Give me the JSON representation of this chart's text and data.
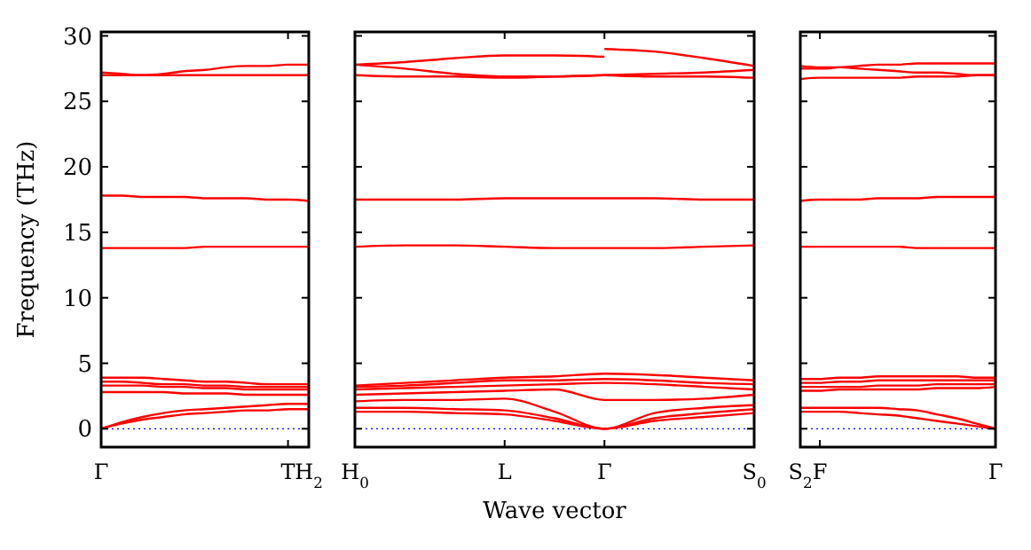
{
  "chart_data": [
    {
      "type": "line",
      "ylabel": "Frequency (THz)",
      "categories": [
        "Γ",
        null,
        null,
        null,
        null,
        null,
        null,
        null,
        null,
        "T",
        "H$_{2}$"
      ],
      "ylim": [
        -1.4,
        30.3
      ],
      "yticks": [
        0,
        5,
        10,
        15,
        20,
        25,
        30
      ],
      "ref_lines": [
        {
          "axis": "y",
          "value": 0,
          "color": "#0000ff",
          "line_style": "dotted"
        }
      ],
      "series": [
        {
          "color": "#ff0000",
          "values": [
            0,
            0.4,
            0.7,
            0.9,
            1.1,
            1.2,
            1.3,
            1.4,
            1.4,
            1.5,
            1.5
          ]
        },
        {
          "color": "#ff0000",
          "values": [
            0,
            0.5,
            0.9,
            1.2,
            1.4,
            1.5,
            1.6,
            1.7,
            1.8,
            1.9,
            1.9
          ]
        },
        {
          "color": "#ff0000",
          "values": [
            2.8,
            2.8,
            2.8,
            2.8,
            2.7,
            2.7,
            2.7,
            2.6,
            2.6,
            2.6,
            2.6
          ]
        },
        {
          "color": "#ff0000",
          "values": [
            3.3,
            3.3,
            3.3,
            3.2,
            3.2,
            3.1,
            3.1,
            3.0,
            3.0,
            3.0,
            3.0
          ]
        },
        {
          "color": "#ff0000",
          "values": [
            3.6,
            3.6,
            3.5,
            3.4,
            3.4,
            3.3,
            3.3,
            3.2,
            3.2,
            3.2,
            3.2
          ]
        },
        {
          "color": "#ff0000",
          "values": [
            3.9,
            3.9,
            3.9,
            3.8,
            3.7,
            3.6,
            3.6,
            3.5,
            3.4,
            3.4,
            3.4
          ]
        },
        {
          "color": "#ff0000",
          "values": [
            13.8,
            13.8,
            13.8,
            13.8,
            13.8,
            13.9,
            13.9,
            13.9,
            13.9,
            13.9,
            13.9
          ]
        },
        {
          "color": "#ff0000",
          "values": [
            17.8,
            17.8,
            17.7,
            17.7,
            17.7,
            17.6,
            17.6,
            17.6,
            17.5,
            17.5,
            17.4
          ]
        },
        {
          "color": "#ff0000",
          "values": [
            27.0,
            27.0,
            27.0,
            27.0,
            27.0,
            27.0,
            27.0,
            27.0,
            27.0,
            27.0,
            27.0
          ]
        },
        {
          "color": "#ff0000",
          "values": [
            27.2,
            27.1,
            27.0,
            27.1,
            27.3,
            27.4,
            27.6,
            27.7,
            27.7,
            27.8,
            27.8
          ]
        }
      ]
    },
    {
      "type": "line",
      "xlabel": "Wave vector",
      "categories": [
        "H$_{0}$",
        null,
        null,
        "L",
        null,
        "Γ",
        null,
        null,
        "S$_{0}$"
      ],
      "ylim": [
        -1.4,
        30.3
      ],
      "yticks": [
        0,
        5,
        10,
        15,
        20,
        25,
        30
      ],
      "tick_labels": "x",
      "ref_lines": [
        {
          "axis": "y",
          "value": 0,
          "color": "#0000ff",
          "line_style": "dotted"
        }
      ],
      "series": [
        {
          "color": "#ff0000",
          "values": [
            1.3,
            1.3,
            1.2,
            1.1,
            0.6,
            0,
            0.6,
            0.9,
            1.2
          ]
        },
        {
          "color": "#ff0000",
          "values": [
            1.6,
            1.6,
            1.5,
            1.4,
            0.8,
            0,
            0.8,
            1.2,
            1.5
          ]
        },
        {
          "color": "#ff0000",
          "values": [
            2.1,
            2.2,
            2.2,
            2.3,
            1.3,
            0,
            1.2,
            1.6,
            1.8
          ]
        },
        {
          "color": "#ff0000",
          "values": [
            2.6,
            2.7,
            2.8,
            2.9,
            3.0,
            2.2,
            2.2,
            2.3,
            2.6
          ]
        },
        {
          "color": "#ff0000",
          "values": [
            3.0,
            3.1,
            3.2,
            3.3,
            3.4,
            3.5,
            3.4,
            3.2,
            3.0
          ]
        },
        {
          "color": "#ff0000",
          "values": [
            3.2,
            3.3,
            3.5,
            3.7,
            3.7,
            3.8,
            3.7,
            3.5,
            3.4
          ]
        },
        {
          "color": "#ff0000",
          "values": [
            3.3,
            3.5,
            3.7,
            3.9,
            4.0,
            4.2,
            4.1,
            3.9,
            3.7
          ]
        },
        {
          "color": "#ff0000",
          "values": [
            13.9,
            14.0,
            14.0,
            13.9,
            13.8,
            13.8,
            13.8,
            13.9,
            14.0
          ]
        },
        {
          "color": "#ff0000",
          "values": [
            17.5,
            17.5,
            17.5,
            17.6,
            17.6,
            17.6,
            17.6,
            17.5,
            17.5
          ]
        },
        {
          "color": "#ff0000",
          "values": [
            27.8,
            28.0,
            28.3,
            28.5,
            28.5,
            28.4,
            null,
            null,
            null
          ]
        },
        {
          "color": "#ff0000",
          "values": [
            27.8,
            27.5,
            27.1,
            26.9,
            26.9,
            27.0,
            null,
            null,
            null
          ]
        },
        {
          "color": "#ff0000",
          "values": [
            27.0,
            26.9,
            26.9,
            26.8,
            26.9,
            27.0,
            null,
            null,
            null
          ]
        },
        {
          "color": "#ff0000",
          "values": [
            null,
            null,
            null,
            null,
            null,
            29.0,
            28.8,
            28.3,
            27.7
          ]
        },
        {
          "color": "#ff0000",
          "values": [
            null,
            null,
            null,
            null,
            null,
            27.0,
            27.1,
            27.2,
            27.4
          ]
        },
        {
          "color": "#ff0000",
          "values": [
            null,
            null,
            null,
            null,
            null,
            27.0,
            26.9,
            26.9,
            26.8
          ]
        }
      ]
    },
    {
      "type": "line",
      "categories": [
        "S$_{2}$",
        "F",
        null,
        null,
        null,
        null,
        null,
        null,
        null,
        null,
        "Γ"
      ],
      "ylim": [
        -1.4,
        30.3
      ],
      "yticks": [
        0,
        5,
        10,
        15,
        20,
        25,
        30
      ],
      "tick_labels": "x",
      "ref_lines": [
        {
          "axis": "y",
          "value": 0,
          "color": "#0000ff",
          "line_style": "dotted"
        }
      ],
      "series": [
        {
          "color": "#ff0000",
          "values": [
            1.3,
            1.3,
            1.3,
            1.2,
            1.1,
            1.0,
            0.8,
            0.6,
            0.4,
            0.2,
            0
          ]
        },
        {
          "color": "#ff0000",
          "values": [
            1.6,
            1.6,
            1.6,
            1.6,
            1.6,
            1.5,
            1.4,
            1.1,
            0.8,
            0.4,
            0
          ]
        },
        {
          "color": "#ff0000",
          "values": [
            2.9,
            2.9,
            3.0,
            3.0,
            3.0,
            3.0,
            3.0,
            3.1,
            3.1,
            3.1,
            3.2
          ]
        },
        {
          "color": "#ff0000",
          "values": [
            3.2,
            3.2,
            3.2,
            3.2,
            3.3,
            3.3,
            3.3,
            3.4,
            3.4,
            3.4,
            3.4
          ]
        },
        {
          "color": "#ff0000",
          "values": [
            3.5,
            3.5,
            3.6,
            3.6,
            3.7,
            3.7,
            3.7,
            3.7,
            3.7,
            3.7,
            3.7
          ]
        },
        {
          "color": "#ff0000",
          "values": [
            3.8,
            3.8,
            3.9,
            3.9,
            4.0,
            4.0,
            4.0,
            4.0,
            4.0,
            3.9,
            3.9
          ]
        },
        {
          "color": "#ff0000",
          "values": [
            13.9,
            13.9,
            13.9,
            13.9,
            13.9,
            13.9,
            13.8,
            13.8,
            13.8,
            13.8,
            13.8
          ]
        },
        {
          "color": "#ff0000",
          "values": [
            17.4,
            17.5,
            17.5,
            17.5,
            17.6,
            17.6,
            17.6,
            17.7,
            17.7,
            17.7,
            17.7
          ]
        },
        {
          "color": "#ff0000",
          "values": [
            26.7,
            26.8,
            26.8,
            26.8,
            26.8,
            26.8,
            26.9,
            26.9,
            26.9,
            27.0,
            27.0
          ]
        },
        {
          "color": "#ff0000",
          "values": [
            27.7,
            27.6,
            27.6,
            27.5,
            27.4,
            27.3,
            27.2,
            27.2,
            27.1,
            27.0,
            27.0
          ]
        },
        {
          "color": "#ff0000",
          "values": [
            27.5,
            27.5,
            27.6,
            27.7,
            27.8,
            27.8,
            27.9,
            27.9,
            27.9,
            27.9,
            27.9
          ]
        }
      ]
    }
  ]
}
